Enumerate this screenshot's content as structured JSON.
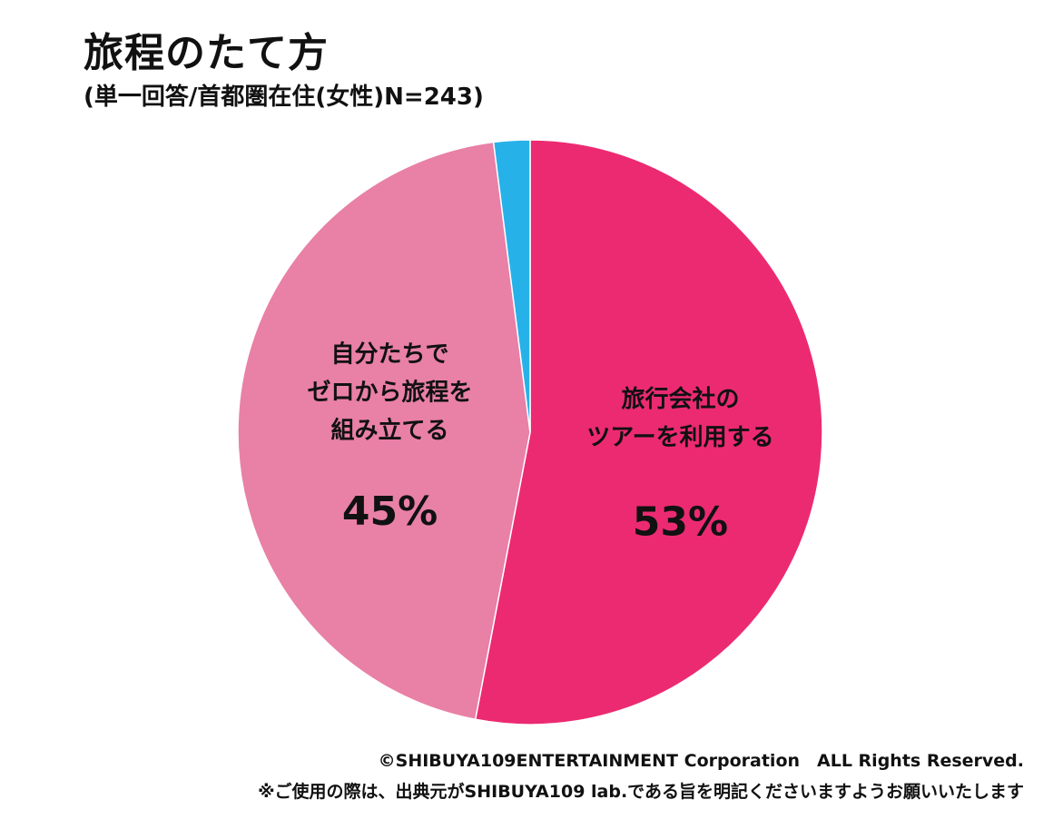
{
  "title": "旅程のたて方",
  "subtitle": "(単一回答/首都圏在住(女性)N=243)",
  "chart_data": {
    "type": "pie",
    "start": "top",
    "direction": "clockwise",
    "slices": [
      {
        "label_lines": [
          "旅行会社の",
          "ツアーを利用する"
        ],
        "value": 53,
        "value_label": "53%",
        "color": "#EC2A72"
      },
      {
        "label_lines": [
          "自分たちで",
          "ゼロから旅程を",
          "組み立てる"
        ],
        "value": 45,
        "value_label": "45%",
        "color": "#E980A6"
      },
      {
        "label_lines": [],
        "value": 2,
        "value_label": "",
        "color": "#27B1E9"
      }
    ]
  },
  "footer": {
    "copyright": "©SHIBUYA109ENTERTAINMENT Corporation　ALL Rights Reserved.",
    "notice": "※ご使用の際は、出典元がSHIBUYA109 lab.である旨を明記くださいますようお願いいたします"
  }
}
